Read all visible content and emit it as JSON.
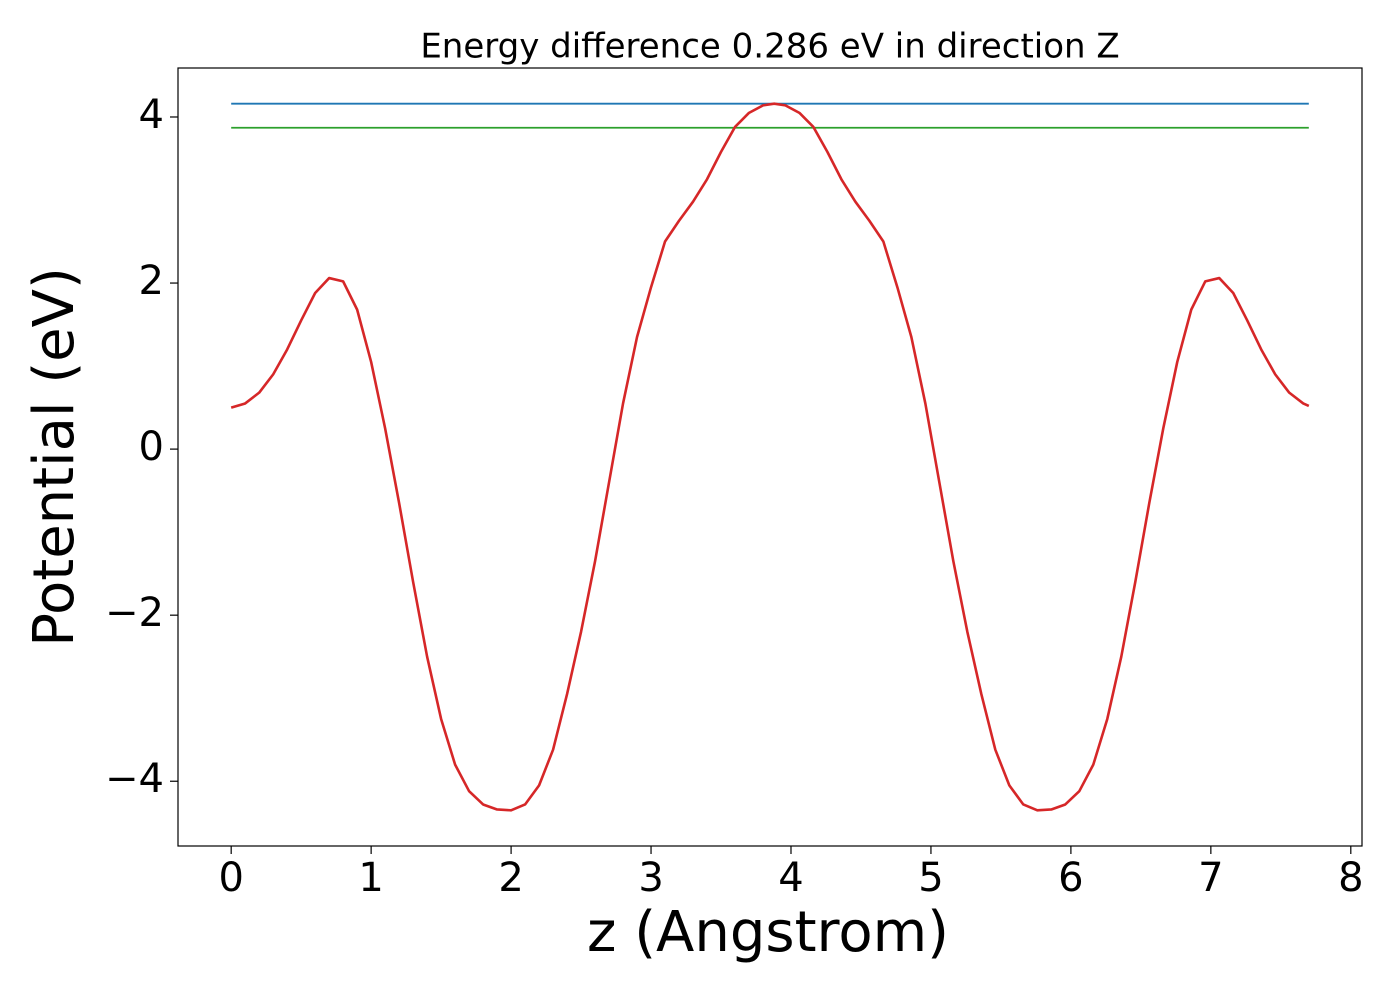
{
  "chart_data": {
    "type": "line",
    "title": "Energy difference 0.286 eV in direction Z",
    "xlabel": "z (Angstrom)",
    "ylabel": "Potential (eV)",
    "xlim": [
      -0.38,
      8.08
    ],
    "ylim": [
      -4.78,
      4.59
    ],
    "xticks": [
      0,
      1,
      2,
      3,
      4,
      5,
      6,
      7,
      8
    ],
    "yticks": [
      {
        "value": -4,
        "label": "−4"
      },
      {
        "value": -2,
        "label": "−2"
      },
      0,
      2,
      4
    ],
    "grid": false,
    "series": [
      {
        "color": "#1f77b4",
        "x": [
          0,
          7.7
        ],
        "values": [
          4.16,
          4.16
        ]
      },
      {
        "color": "#2ca02c",
        "x": [
          0,
          7.7
        ],
        "values": [
          3.87,
          3.87
        ]
      },
      {
        "color": "#d62728",
        "x": [
          0,
          0.1,
          0.2,
          0.3,
          0.4,
          0.5,
          0.6,
          0.7,
          0.8,
          0.9,
          1.0,
          1.1,
          1.2,
          1.3,
          1.4,
          1.5,
          1.6,
          1.7,
          1.8,
          1.9,
          2.0,
          2.1,
          2.2,
          2.3,
          2.4,
          2.5,
          2.6,
          2.7,
          2.8,
          2.9,
          3.0,
          3.1,
          3.2,
          3.3,
          3.4,
          3.5,
          3.6,
          3.7,
          3.8,
          3.88,
          3.96,
          4.06,
          4.16,
          4.26,
          4.36,
          4.46,
          4.56,
          4.66,
          4.76,
          4.86,
          4.96,
          5.06,
          5.16,
          5.26,
          5.36,
          5.46,
          5.56,
          5.66,
          5.76,
          5.86,
          5.96,
          6.06,
          6.16,
          6.26,
          6.36,
          6.46,
          6.56,
          6.66,
          6.76,
          6.86,
          6.96,
          7.06,
          7.16,
          7.26,
          7.36,
          7.46,
          7.56,
          7.66,
          7.7
        ],
        "values": [
          0.5,
          0.55,
          0.68,
          0.9,
          1.2,
          1.55,
          1.88,
          2.06,
          2.02,
          1.68,
          1.05,
          0.25,
          -0.65,
          -1.6,
          -2.5,
          -3.25,
          -3.8,
          -4.12,
          -4.28,
          -4.34,
          -4.35,
          -4.28,
          -4.05,
          -3.62,
          -2.95,
          -2.2,
          -1.35,
          -0.4,
          0.55,
          1.35,
          1.95,
          2.5,
          2.75,
          2.98,
          3.25,
          3.58,
          3.88,
          4.05,
          4.14,
          4.16,
          4.14,
          4.05,
          3.88,
          3.58,
          3.25,
          2.98,
          2.75,
          2.5,
          1.95,
          1.35,
          0.55,
          -0.4,
          -1.35,
          -2.2,
          -2.95,
          -3.62,
          -4.05,
          -4.28,
          -4.35,
          -4.34,
          -4.28,
          -4.12,
          -3.8,
          -3.25,
          -2.5,
          -1.6,
          -0.65,
          0.25,
          1.05,
          1.68,
          2.02,
          2.06,
          1.88,
          1.55,
          1.2,
          0.9,
          0.68,
          0.55,
          0.52
        ]
      }
    ]
  }
}
